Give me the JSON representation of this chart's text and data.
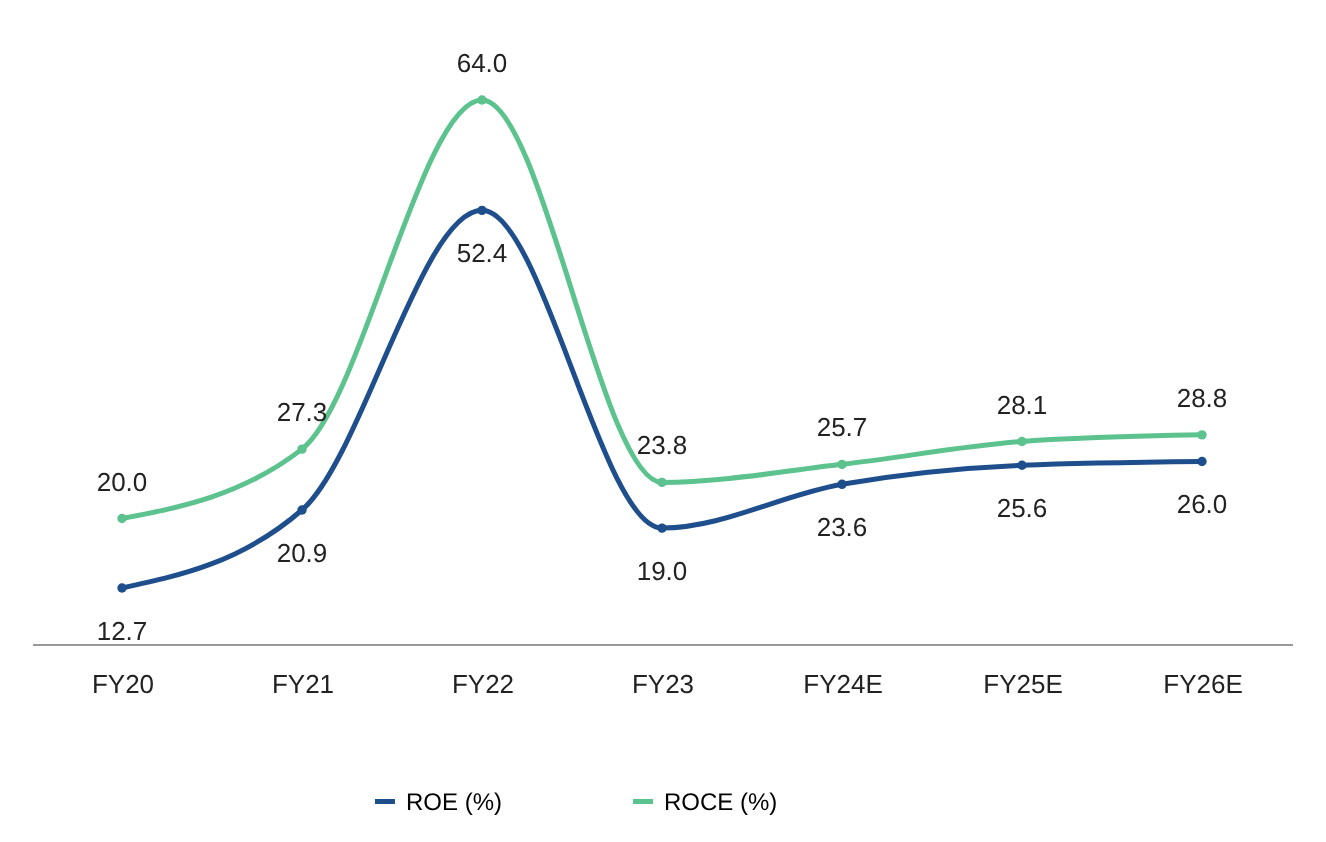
{
  "chart_data": {
    "type": "line",
    "categories": [
      "FY20",
      "FY21",
      "FY22",
      "FY23",
      "FY24E",
      "FY25E",
      "FY26E"
    ],
    "series": [
      {
        "name": "ROE (%)",
        "color": "#1f4e8c",
        "values": [
          12.7,
          20.9,
          52.4,
          19.0,
          23.6,
          25.6,
          26.0
        ],
        "value_labels": [
          "12.7",
          "20.9",
          "52.4",
          "19.0",
          "23.6",
          "25.6",
          "26.0"
        ]
      },
      {
        "name": "ROCE (%)",
        "color": "#5cc28e",
        "values": [
          20.0,
          27.3,
          64.0,
          23.8,
          25.7,
          28.1,
          28.8
        ],
        "value_labels": [
          "20.0",
          "27.3",
          "64.0",
          "23.8",
          "25.7",
          "28.1",
          "28.8"
        ]
      }
    ],
    "marker": "circle",
    "legend": "bottom",
    "grid": false
  }
}
